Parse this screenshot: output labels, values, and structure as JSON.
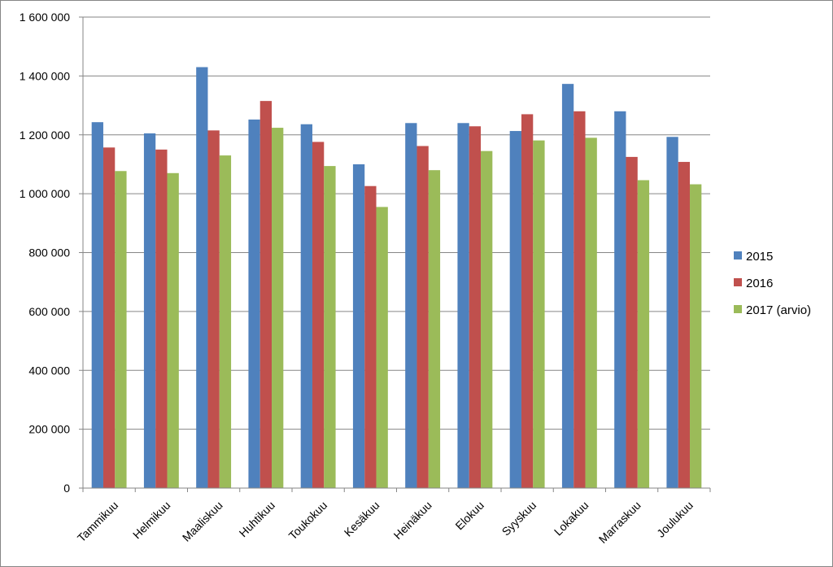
{
  "chart_data": {
    "type": "bar",
    "title": "",
    "xlabel": "",
    "ylabel": "",
    "ylim": [
      0,
      1600000
    ],
    "ytick_step": 200000,
    "yticks": [
      "0",
      "200 000",
      "400 000",
      "600 000",
      "800 000",
      "1 000 000",
      "1 200 000",
      "1 400 000",
      "1 600 000"
    ],
    "grid": "horizontal",
    "legend_position": "right",
    "categories": [
      "Tammikuu",
      "Helmikuu",
      "Maaliskuu",
      "Huhtikuu",
      "Toukokuu",
      "Kesäkuu",
      "Heinäkuu",
      "Elokuu",
      "Syyskuu",
      "Lokakuu",
      "Marraskuu",
      "Joulukuu"
    ],
    "series": [
      {
        "name": "2015",
        "color": "#4F81BD",
        "values": [
          1243000,
          1205000,
          1430000,
          1252000,
          1236000,
          1100000,
          1240000,
          1240000,
          1213000,
          1373000,
          1280000,
          1193000
        ]
      },
      {
        "name": "2016",
        "color": "#C0504D",
        "values": [
          1157000,
          1150000,
          1215000,
          1315000,
          1176000,
          1026000,
          1162000,
          1229000,
          1270000,
          1280000,
          1125000,
          1108000
        ]
      },
      {
        "name": "2017 (arvio)",
        "color": "#9BBB59",
        "values": [
          1077000,
          1070000,
          1130000,
          1224000,
          1094000,
          955000,
          1080000,
          1145000,
          1181000,
          1190000,
          1046000,
          1032000
        ]
      }
    ]
  }
}
